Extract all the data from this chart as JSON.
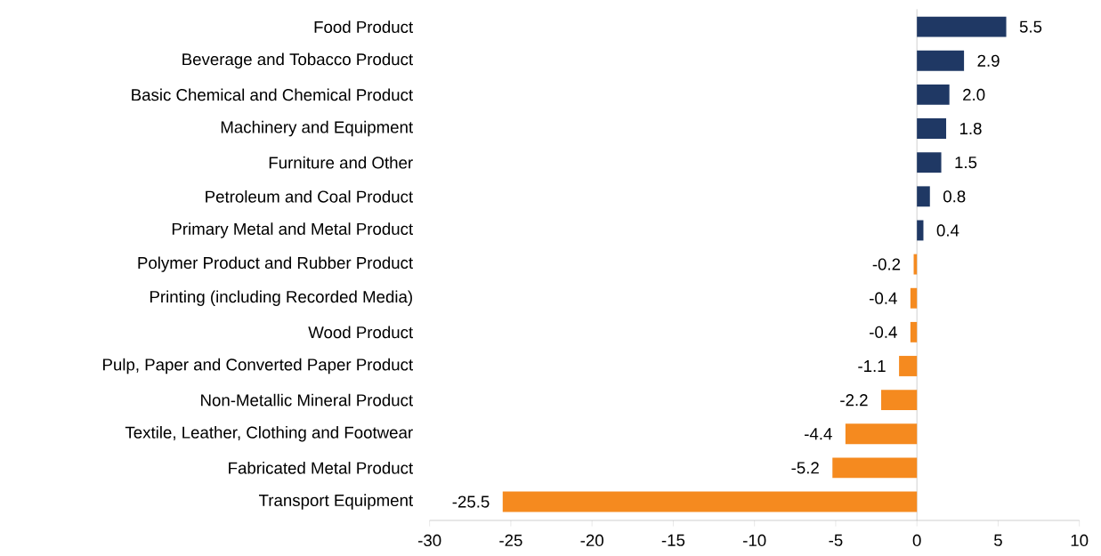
{
  "chart_data": {
    "type": "bar",
    "orientation": "horizontal",
    "categories": [
      "Food Product",
      "Beverage and Tobacco Product",
      "Basic Chemical and Chemical Product",
      "Machinery and Equipment",
      "Furniture and Other",
      "Petroleum and Coal Product",
      "Primary Metal and Metal Product",
      "Polymer Product and Rubber Product",
      "Printing (including Recorded Media)",
      "Wood Product",
      "Pulp, Paper and Converted Paper Product",
      "Non-Metallic Mineral Product",
      "Textile, Leather, Clothing and Footwear",
      "Fabricated Metal Product",
      "Transport Equipment"
    ],
    "values": [
      5.5,
      2.9,
      2.0,
      1.8,
      1.5,
      0.8,
      0.4,
      -0.2,
      -0.4,
      -0.4,
      -1.1,
      -2.2,
      -4.4,
      -5.2,
      -25.5
    ],
    "colors": [
      "#1f3864",
      "#1f3864",
      "#1f3864",
      "#1f3864",
      "#1f3864",
      "#1f3864",
      "#1f3864",
      "#f58a1f",
      "#f58a1f",
      "#f58a1f",
      "#f58a1f",
      "#f58a1f",
      "#f58a1f",
      "#f58a1f",
      "#f58a1f"
    ],
    "xlim": [
      -30,
      10
    ],
    "xticks": [
      -30,
      -25,
      -20,
      -15,
      -10,
      -5,
      0,
      5,
      10
    ],
    "value_labels": [
      "5.5",
      "2.9",
      "2.0",
      "1.8",
      "1.5",
      "0.8",
      "0.4",
      "-0.2",
      "-0.4",
      "-0.4",
      "-1.1",
      "-2.2",
      "-4.4",
      "-5.2",
      "-25.5"
    ]
  }
}
